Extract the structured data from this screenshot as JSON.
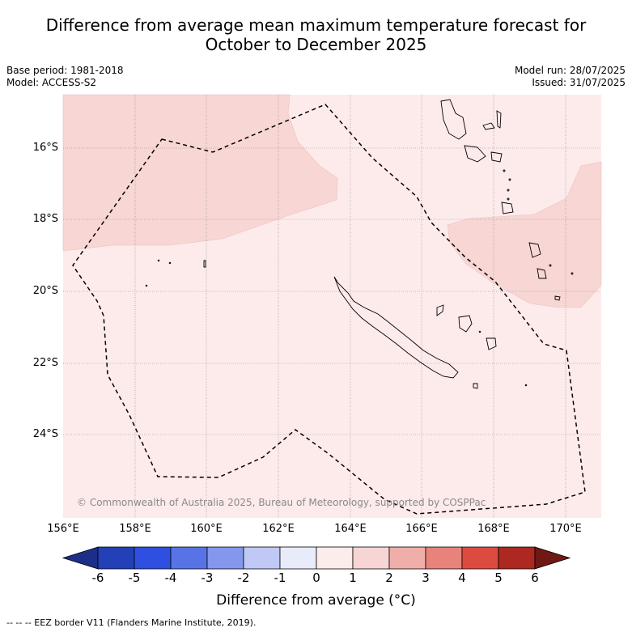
{
  "title_line1": "Difference from average mean maximum temperature forecast for",
  "title_line2": "October to December 2025",
  "meta_left": [
    "Base period: 1981-2018",
    "Model: ACCESS-S2"
  ],
  "meta_right": [
    "Model run: 28/07/2025",
    "Issued: 31/07/2025"
  ],
  "lat_labels": [
    "16°S",
    "18°S",
    "20°S",
    "22°S",
    "24°S"
  ],
  "lon_labels": [
    "156°E",
    "158°E",
    "160°E",
    "162°E",
    "164°E",
    "166°E",
    "168°E",
    "170°E"
  ],
  "copyright": "© Commonwealth of Australia 2025, Bureau of Meteorology, supported by COSPPac",
  "colorbar": {
    "ticks": [
      "-6",
      "-5",
      "-4",
      "-3",
      "-2",
      "-1",
      "0",
      "1",
      "2",
      "3",
      "4",
      "5",
      "6"
    ],
    "label": "Difference from average (°C)",
    "colors": [
      "#1c2e87",
      "#2340b8",
      "#2f4fe0",
      "#5773e6",
      "#8497ec",
      "#c0c8f5",
      "#e8ebfa",
      "#fceceb",
      "#f7d5d4",
      "#f0aea9",
      "#e8837c",
      "#dd4b40",
      "#ac2820",
      "#701814"
    ]
  },
  "map_colors": {
    "base": "#fcebea",
    "warm": "#f7d6d4",
    "land_outline": "#000000",
    "grid": "#999999"
  },
  "footer": "--  --  -- EEZ border V11 (Flanders Marine Institute, 2019)."
}
